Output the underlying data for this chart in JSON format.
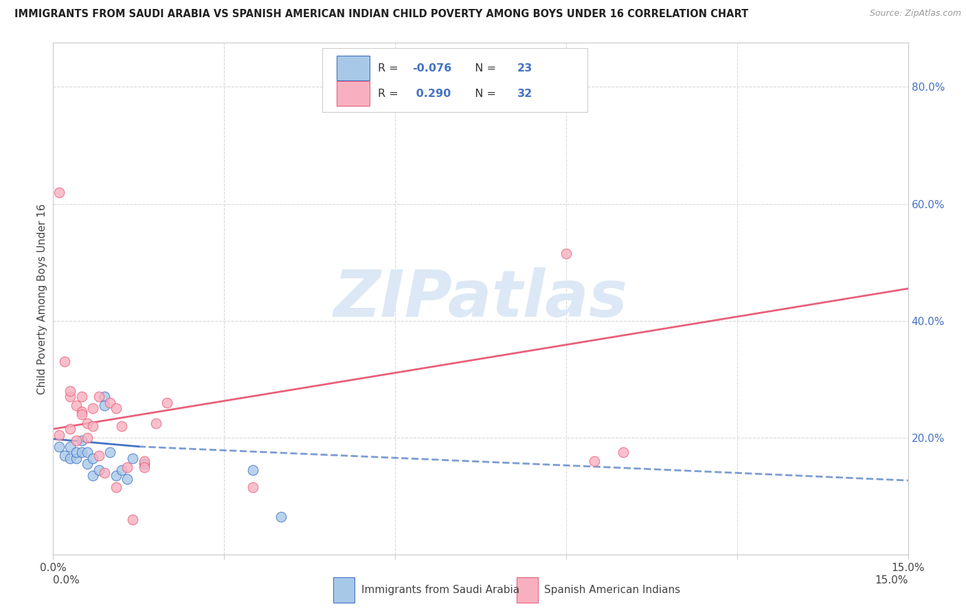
{
  "title": "IMMIGRANTS FROM SAUDI ARABIA VS SPANISH AMERICAN INDIAN CHILD POVERTY AMONG BOYS UNDER 16 CORRELATION CHART",
  "source": "Source: ZipAtlas.com",
  "ylabel": "Child Poverty Among Boys Under 16",
  "legend_label_blue": "Immigrants from Saudi Arabia",
  "legend_label_pink": "Spanish American Indians",
  "R_blue": -0.076,
  "N_blue": 23,
  "R_pink": 0.29,
  "N_pink": 32,
  "xlim": [
    0.0,
    0.15
  ],
  "ylim": [
    0.0,
    0.875
  ],
  "right_yticks": [
    0.2,
    0.4,
    0.6,
    0.8
  ],
  "right_yticklabels": [
    "20.0%",
    "40.0%",
    "60.0%",
    "80.0%"
  ],
  "xticks": [
    0.0,
    0.03,
    0.06,
    0.09,
    0.12,
    0.15
  ],
  "xticklabels": [
    "0.0%",
    "",
    "",
    "",
    "",
    "15.0%"
  ],
  "color_blue": "#a8c8e8",
  "color_pink": "#f8b0c0",
  "line_blue": "#4472c4",
  "line_pink": "#e8607a",
  "background": "#ffffff",
  "watermark": "ZIPatlas",
  "watermark_color": "#dce8f5",
  "blue_scatter_x": [
    0.001,
    0.002,
    0.003,
    0.003,
    0.004,
    0.004,
    0.005,
    0.005,
    0.006,
    0.006,
    0.007,
    0.007,
    0.008,
    0.009,
    0.009,
    0.01,
    0.011,
    0.012,
    0.013,
    0.014,
    0.016,
    0.035,
    0.04
  ],
  "blue_scatter_y": [
    0.185,
    0.17,
    0.185,
    0.165,
    0.165,
    0.175,
    0.195,
    0.175,
    0.175,
    0.155,
    0.135,
    0.165,
    0.145,
    0.27,
    0.255,
    0.175,
    0.135,
    0.145,
    0.13,
    0.165,
    0.155,
    0.145,
    0.065
  ],
  "pink_scatter_x": [
    0.001,
    0.001,
    0.002,
    0.003,
    0.003,
    0.003,
    0.004,
    0.004,
    0.005,
    0.005,
    0.005,
    0.006,
    0.006,
    0.007,
    0.007,
    0.008,
    0.008,
    0.009,
    0.01,
    0.011,
    0.011,
    0.012,
    0.013,
    0.014,
    0.016,
    0.016,
    0.018,
    0.02,
    0.035,
    0.09,
    0.095,
    0.1
  ],
  "pink_scatter_y": [
    0.62,
    0.205,
    0.33,
    0.27,
    0.215,
    0.28,
    0.255,
    0.195,
    0.245,
    0.24,
    0.27,
    0.225,
    0.2,
    0.22,
    0.25,
    0.27,
    0.17,
    0.14,
    0.26,
    0.115,
    0.25,
    0.22,
    0.15,
    0.06,
    0.16,
    0.15,
    0.225,
    0.26,
    0.115,
    0.515,
    0.16,
    0.175
  ],
  "blue_line_x": [
    0.0,
    0.015,
    0.15
  ],
  "blue_line_y": [
    0.198,
    0.185,
    0.127
  ],
  "blue_line_solid_end": 0.015,
  "pink_line_x": [
    0.0,
    0.15
  ],
  "pink_line_y": [
    0.215,
    0.455
  ],
  "pink_line_solid_end": 0.15,
  "grid_color": "#d8d8d8",
  "spine_color": "#cccccc",
  "title_fontsize": 10.5,
  "source_fontsize": 9,
  "tick_fontsize": 11,
  "ylabel_fontsize": 11,
  "scatter_size": 110,
  "scatter_alpha": 0.8,
  "scatter_edge_width": 0.8
}
